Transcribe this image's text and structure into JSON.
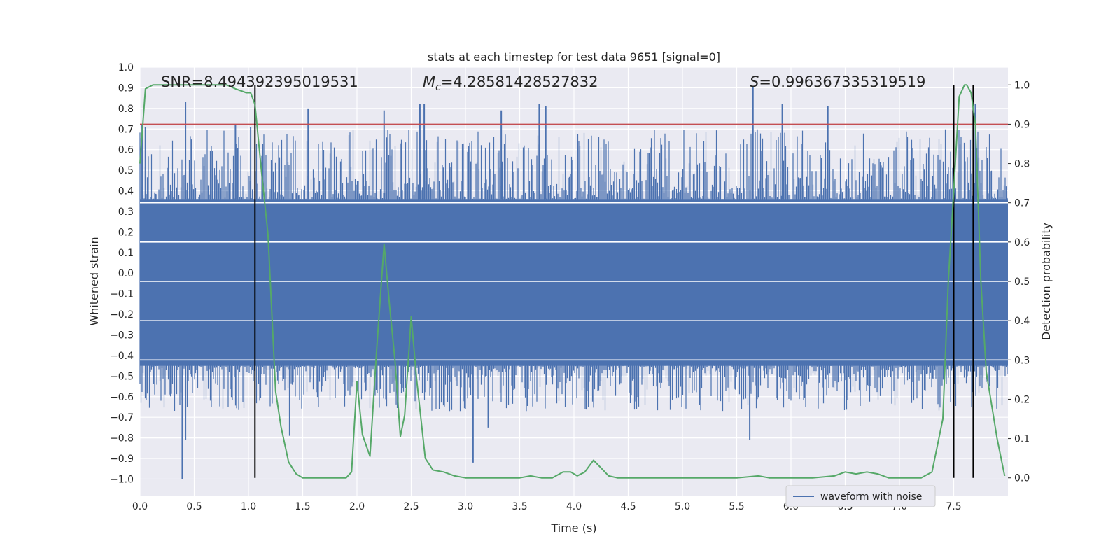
{
  "chart_data": {
    "type": "line",
    "title": "stats at each timestep for test data 9651 [signal=0]",
    "xlabel": "Time (s)",
    "ylabel": "Whitened strain",
    "y2label": "Detection probability",
    "xlim": [
      0,
      8
    ],
    "ylim": [
      -1.08,
      1.0
    ],
    "y2lim": [
      -0.045,
      1.045
    ],
    "x_ticks": [
      0.0,
      0.5,
      1.0,
      1.5,
      2.0,
      2.5,
      3.0,
      3.5,
      4.0,
      4.5,
      5.0,
      5.5,
      6.0,
      6.5,
      7.0,
      7.5
    ],
    "y_ticks": [
      -1.0,
      -0.9,
      -0.8,
      -0.7,
      -0.6,
      -0.5,
      -0.4,
      -0.3,
      -0.2,
      -0.1,
      0.0,
      0.1,
      0.2,
      0.3,
      0.4,
      0.5,
      0.6,
      0.7,
      0.8,
      0.9,
      1.0
    ],
    "y2_ticks": [
      0.0,
      0.1,
      0.2,
      0.3,
      0.4,
      0.5,
      0.6,
      0.7,
      0.8,
      0.9,
      1.0
    ],
    "grid": true,
    "legend": {
      "placement": "lower-right",
      "entries": [
        "waveform with noise"
      ]
    },
    "annotations": {
      "snr": "SNR=8.494392395019531",
      "mc_symbol": "M",
      "mc_sub": "c",
      "mc_value": "=4.28581428527832",
      "s_symbol": "S",
      "s_value": "=0.996367335319519"
    },
    "threshold": {
      "axis": "right",
      "value": 0.9,
      "color": "#c44e52"
    },
    "vertical_markers": [
      1.06,
      7.5,
      7.68
    ],
    "series": [
      {
        "name": "waveform with noise",
        "axis": "left",
        "color": "#4c72b0",
        "band_envelope": {
          "lower": -0.45,
          "upper": 0.36
        },
        "spikes": [
          [
            0.02,
            0.72
          ],
          [
            0.05,
            0.71
          ],
          [
            0.42,
            0.83
          ],
          [
            0.88,
            0.72
          ],
          [
            1.02,
            0.71
          ],
          [
            1.55,
            0.8
          ],
          [
            2.25,
            0.79
          ],
          [
            2.58,
            0.82
          ],
          [
            2.62,
            0.82
          ],
          [
            3.33,
            0.79
          ],
          [
            3.68,
            0.82
          ],
          [
            3.74,
            0.81
          ],
          [
            5.65,
            0.91
          ],
          [
            5.92,
            0.82
          ],
          [
            6.34,
            0.81
          ],
          [
            7.7,
            0.82
          ],
          [
            0.39,
            -1.0
          ],
          [
            0.42,
            -0.81
          ],
          [
            1.38,
            -0.79
          ],
          [
            3.07,
            -0.92
          ],
          [
            3.21,
            -0.75
          ],
          [
            5.62,
            -0.81
          ]
        ]
      },
      {
        "name": "",
        "axis": "right",
        "color": "#55a868",
        "x": [
          0.0,
          0.05,
          0.12,
          0.3,
          0.5,
          0.8,
          0.88,
          0.98,
          1.02,
          1.06,
          1.12,
          1.18,
          1.25,
          1.3,
          1.37,
          1.44,
          1.5,
          1.6,
          1.8,
          1.9,
          1.95,
          2.0,
          2.05,
          2.12,
          2.18,
          2.25,
          2.3,
          2.35,
          2.4,
          2.44,
          2.5,
          2.55,
          2.63,
          2.7,
          2.8,
          2.9,
          3.0,
          3.2,
          3.5,
          3.6,
          3.7,
          3.8,
          3.9,
          3.97,
          4.03,
          4.1,
          4.18,
          4.25,
          4.32,
          4.4,
          4.6,
          4.8,
          5.0,
          5.5,
          5.7,
          5.8,
          6.0,
          6.2,
          6.4,
          6.5,
          6.6,
          6.7,
          6.8,
          6.9,
          7.0,
          7.1,
          7.2,
          7.3,
          7.4,
          7.45,
          7.5,
          7.55,
          7.6,
          7.62,
          7.66,
          7.7,
          7.75,
          7.8,
          7.9,
          7.97
        ],
        "y": [
          0.8,
          0.99,
          1.0,
          1.0,
          1.0,
          1.0,
          0.99,
          0.98,
          0.98,
          0.95,
          0.78,
          0.62,
          0.22,
          0.13,
          0.04,
          0.01,
          0.0,
          0.0,
          0.0,
          0.0,
          0.015,
          0.245,
          0.11,
          0.055,
          0.32,
          0.595,
          0.44,
          0.3,
          0.105,
          0.16,
          0.41,
          0.25,
          0.05,
          0.02,
          0.015,
          0.005,
          0.0,
          0.0,
          0.0,
          0.005,
          0.0,
          0.0,
          0.015,
          0.015,
          0.005,
          0.015,
          0.045,
          0.025,
          0.005,
          0.0,
          0.0,
          0.0,
          0.0,
          0.0,
          0.005,
          0.0,
          0.0,
          0.0,
          0.005,
          0.015,
          0.01,
          0.015,
          0.01,
          0.0,
          0.0,
          0.0,
          0.0,
          0.015,
          0.15,
          0.5,
          0.73,
          0.97,
          1.0,
          1.0,
          0.98,
          0.9,
          0.5,
          0.27,
          0.1,
          0.005
        ]
      }
    ]
  }
}
